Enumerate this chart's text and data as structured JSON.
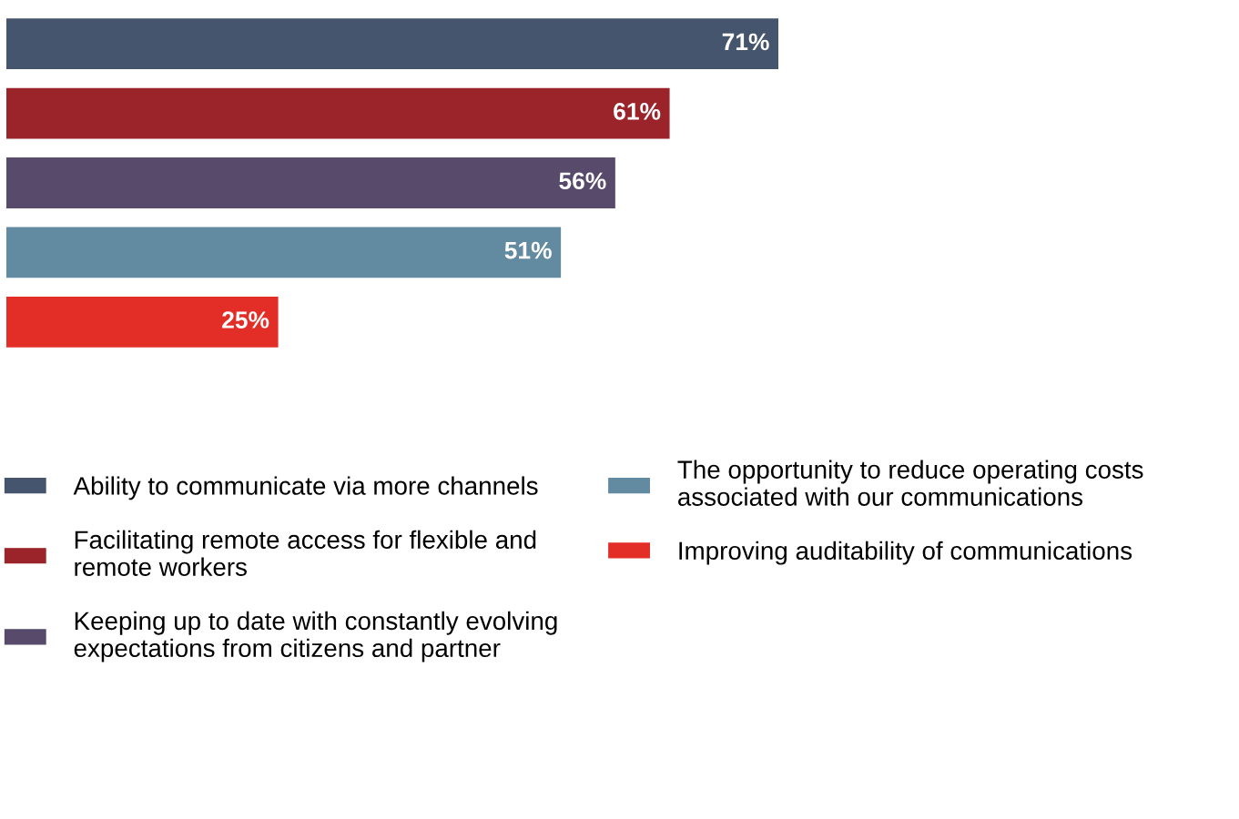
{
  "chart_data": {
    "type": "bar",
    "orientation": "horizontal",
    "stacked": true,
    "categories": [
      null,
      null,
      null,
      null,
      null
    ],
    "series": [
      {
        "name": "Ability to communicate via more channels",
        "color": "#46556e",
        "values": [
          71,
          null,
          null,
          null,
          null
        ],
        "value_labels": [
          "71%",
          null,
          null,
          null,
          null
        ]
      },
      {
        "name": "Facilitating remote access for flexible and remote workers",
        "color": "#9b242b",
        "values": [
          null,
          61,
          null,
          null,
          null
        ],
        "value_labels": [
          null,
          "61%",
          null,
          null,
          null
        ]
      },
      {
        "name": "Keeping up to date with constantly evolving expectations from citizens and partner",
        "color": "#574a6b",
        "values": [
          null,
          null,
          56,
          null,
          null
        ],
        "value_labels": [
          null,
          null,
          "56%",
          null,
          null
        ]
      },
      {
        "name": "The opportunity to reduce operating costs associated with our communications",
        "color": "#628aa0",
        "values": [
          null,
          null,
          null,
          51,
          null
        ],
        "value_labels": [
          null,
          null,
          null,
          "51%",
          null
        ]
      },
      {
        "name": "Improving auditability of communications",
        "color": "#e32e28",
        "values": [
          null,
          null,
          null,
          null,
          25
        ],
        "value_labels": [
          null,
          null,
          null,
          null,
          "25%"
        ]
      }
    ],
    "tick_labels": false,
    "grid": false,
    "legend": "bottom"
  }
}
